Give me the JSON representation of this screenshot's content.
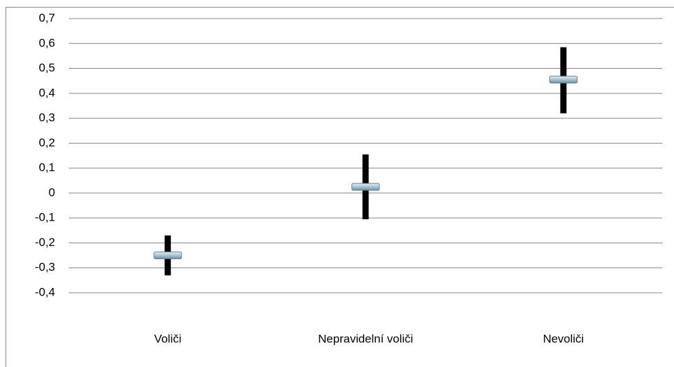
{
  "chart_data": {
    "type": "errorbar",
    "categories": [
      "Voliči",
      "Nepravidelní voliči",
      "Nevoliči"
    ],
    "values": [
      -0.25,
      0.025,
      0.455
    ],
    "high": [
      -0.17,
      0.155,
      0.585
    ],
    "low": [
      -0.33,
      -0.105,
      0.32
    ],
    "color": "#000000",
    "marker_color": "#a9c3d0",
    "ylim": [
      -0.4,
      0.7
    ],
    "yticks": [
      {
        "value": -0.4,
        "label": "-0,4"
      },
      {
        "value": -0.3,
        "label": "-0,3"
      },
      {
        "value": -0.2,
        "label": "-0,2"
      },
      {
        "value": -0.1,
        "label": "-0,1"
      },
      0,
      {
        "value": 0.1,
        "label": "0,1"
      },
      {
        "value": 0.2,
        "label": "0,2"
      },
      {
        "value": 0.3,
        "label": "0,3"
      },
      {
        "value": 0.4,
        "label": "0,4"
      },
      {
        "value": 0.5,
        "label": "0,5"
      },
      {
        "value": 0.6,
        "label": "0,6"
      },
      {
        "value": 0.7,
        "label": "0,7"
      }
    ],
    "grid": true
  }
}
